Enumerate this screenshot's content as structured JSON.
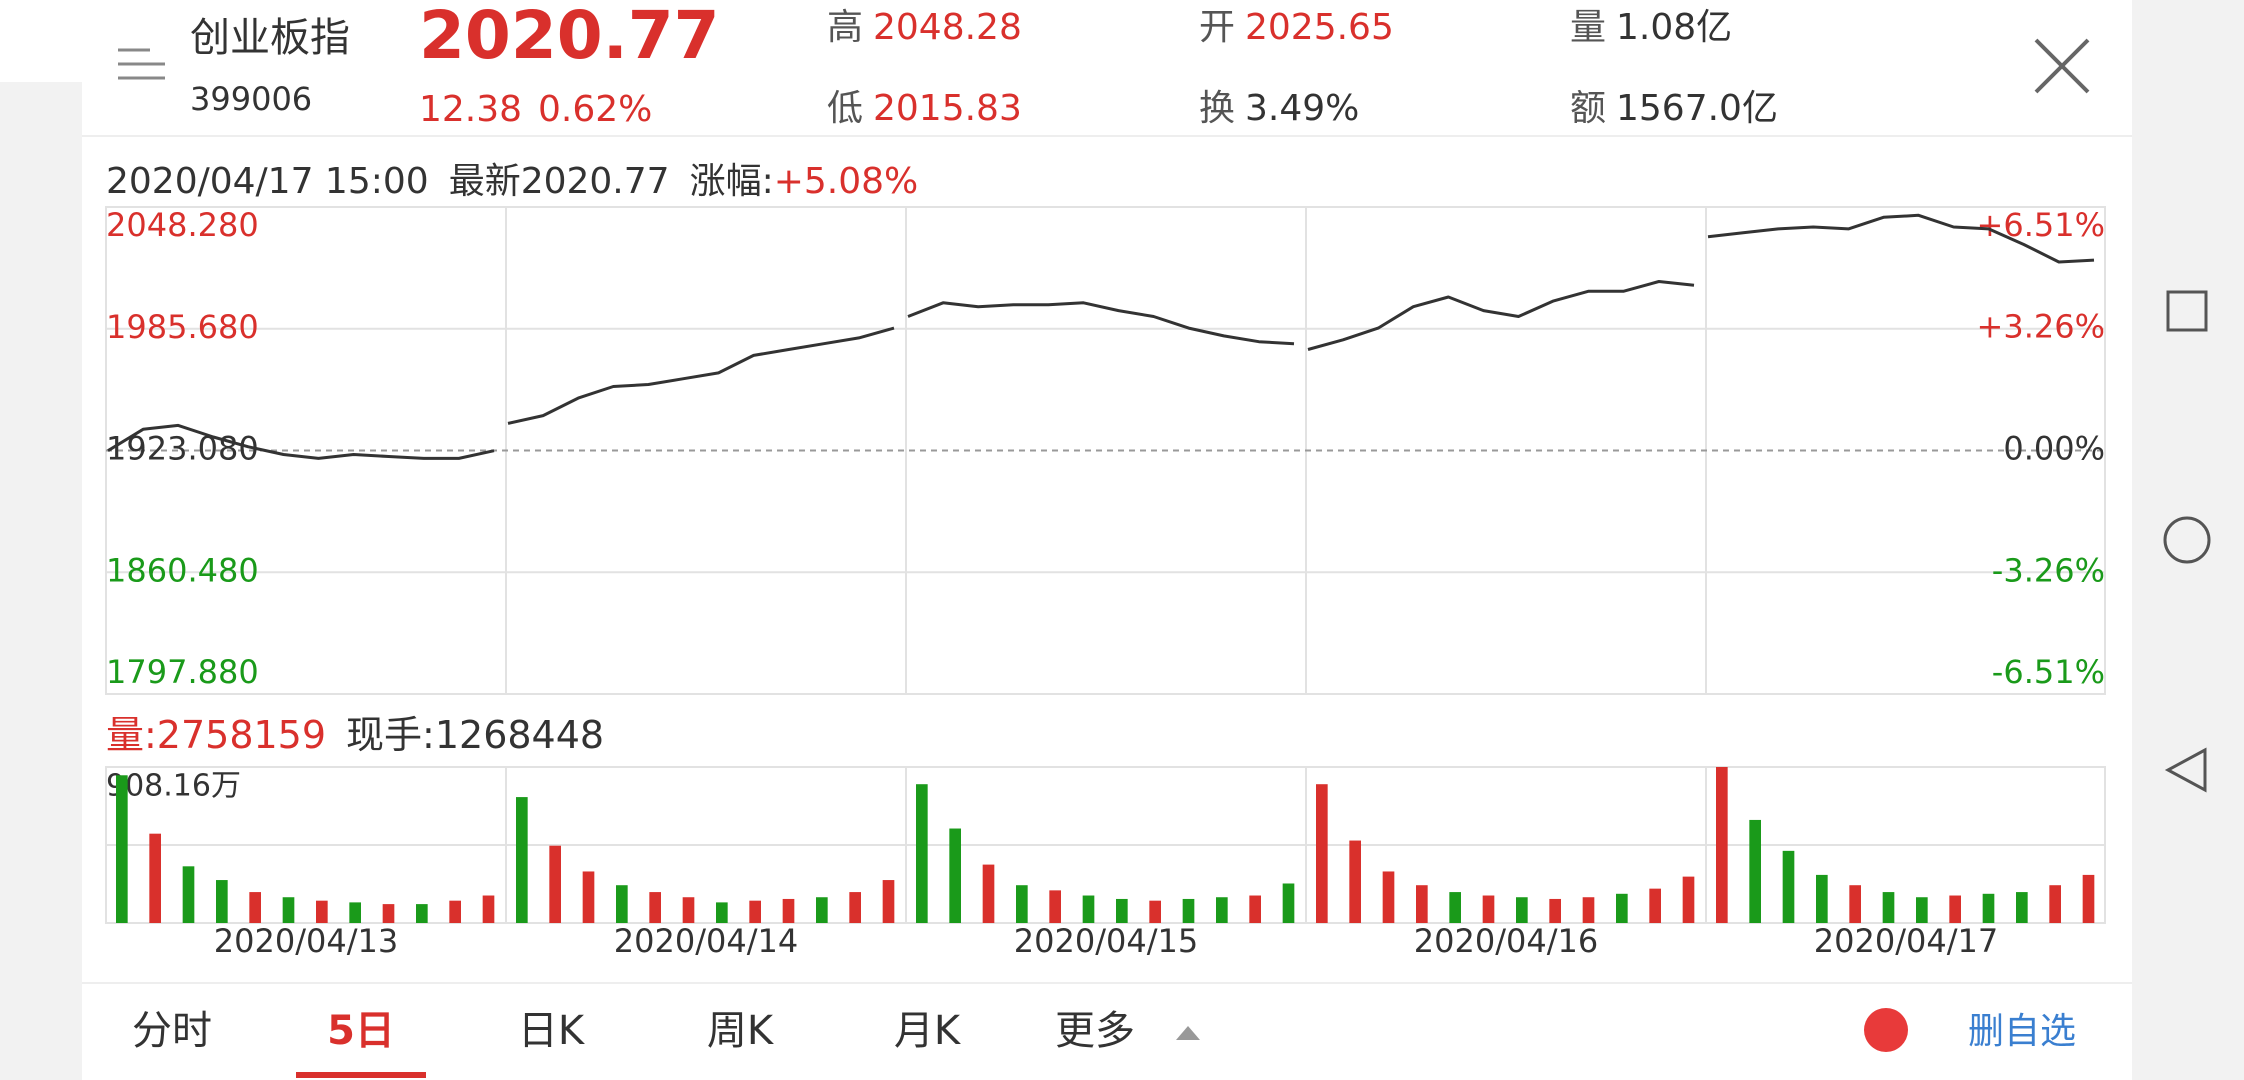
{
  "header": {
    "name": "创业板指",
    "code": "399006",
    "price": "2020.77",
    "change": "12.38",
    "change_pct": "0.62%",
    "stats": [
      {
        "label": "高",
        "value": "2048.28",
        "color": "#d9302c"
      },
      {
        "label": "低",
        "value": "2015.83",
        "color": "#d9302c"
      },
      {
        "label": "开",
        "value": "2025.65",
        "color": "#d9302c"
      },
      {
        "label": "换",
        "value": "3.49%",
        "color": "#333333"
      },
      {
        "label": "量",
        "value": "1.08亿",
        "color": "#333333"
      },
      {
        "label": "额",
        "value": "1567.0亿",
        "color": "#333333"
      }
    ]
  },
  "chart_data": {
    "type": "line",
    "info": {
      "time": "2020/04/17 15:00",
      "latest": "最新2020.77",
      "change_label": "涨幅:",
      "change": "+5.08%"
    },
    "ylim": [
      1797.88,
      2048.28
    ],
    "yticks": [
      {
        "value": 2048.28,
        "label": "2048.280"
      },
      {
        "value": 1985.68,
        "label": "1985.680"
      },
      {
        "value": 1923.08,
        "label": "1923.080"
      },
      {
        "value": 1860.48,
        "label": "1860.480"
      },
      {
        "value": 1797.88,
        "label": "1797.880"
      }
    ],
    "y2lim": [
      -6.51,
      6.51
    ],
    "y2ticks": [
      {
        "value": 6.51,
        "label": "+6.51%"
      },
      {
        "value": 3.26,
        "label": "+3.26%"
      },
      {
        "value": 0,
        "label": "0.00%"
      },
      {
        "value": -3.26,
        "label": "-3.26%"
      },
      {
        "value": -6.51,
        "label": "-6.51%"
      }
    ],
    "color": "#333333",
    "up_color": "#d9302c",
    "down_color": "#1a9a1a",
    "volume_label": "量:2758159",
    "hand_label": "现手:1268448",
    "vlim": [
      0,
      9081600
    ],
    "vticks": [
      {
        "value": 9081600,
        "label": "908.16万"
      }
    ],
    "days": [
      {
        "date": "2020/04/13",
        "values": [
          1923,
          1934,
          1936,
          1930,
          1925,
          1921,
          1919,
          1921,
          1920,
          1919,
          1919,
          1923
        ],
        "volume": [
          8600000,
          5200000,
          3300000,
          2500000,
          1800000,
          1500000,
          1300000,
          1200000,
          1100000,
          1100000,
          1300000,
          1600000
        ],
        "up": [
          false,
          true,
          false,
          false,
          true,
          false,
          true,
          false,
          true,
          false,
          true,
          true
        ]
      },
      {
        "date": "2020/04/14",
        "values": [
          1937,
          1941,
          1950,
          1956,
          1957,
          1960,
          1963,
          1972,
          1975,
          1978,
          1981,
          1986
        ],
        "volume": [
          7330000,
          4500000,
          3000000,
          2200000,
          1800000,
          1500000,
          1200000,
          1300000,
          1400000,
          1500000,
          1800000,
          2500000
        ],
        "up": [
          false,
          true,
          true,
          false,
          true,
          true,
          false,
          true,
          true,
          false,
          true,
          true
        ]
      },
      {
        "date": "2020/04/15",
        "values": [
          1992,
          1999,
          1997,
          1998,
          1998,
          1999,
          1995,
          1992,
          1986,
          1982,
          1979,
          1978
        ],
        "volume": [
          8080000,
          5500000,
          3400000,
          2200000,
          1900000,
          1600000,
          1400000,
          1300000,
          1400000,
          1500000,
          1600000,
          2300000
        ],
        "up": [
          false,
          false,
          true,
          false,
          true,
          false,
          false,
          true,
          false,
          false,
          true,
          false
        ]
      },
      {
        "date": "2020/04/16",
        "values": [
          1975,
          1980,
          1986,
          1997,
          2002,
          1995,
          1992,
          2000,
          2005,
          2005,
          2010,
          2008
        ],
        "volume": [
          8080000,
          4800000,
          3000000,
          2200000,
          1800000,
          1600000,
          1500000,
          1400000,
          1500000,
          1700000,
          2000000,
          2700000
        ],
        "up": [
          true,
          true,
          true,
          true,
          false,
          true,
          false,
          true,
          true,
          false,
          true,
          true
        ]
      },
      {
        "date": "2020/04/17",
        "values": [
          2033,
          2035,
          2037,
          2038,
          2037,
          2043,
          2044,
          2038,
          2037,
          2029,
          2020,
          2021
        ],
        "volume": [
          9081600,
          6000000,
          4200000,
          2800000,
          2200000,
          1800000,
          1500000,
          1600000,
          1700000,
          1800000,
          2200000,
          2800000
        ],
        "up": [
          true,
          false,
          false,
          false,
          true,
          false,
          false,
          true,
          false,
          false,
          true,
          true
        ]
      }
    ]
  },
  "tabs": {
    "items": [
      "分时",
      "5日",
      "日K",
      "周K",
      "月K",
      "更多"
    ],
    "active": 1
  },
  "action": "删自选"
}
